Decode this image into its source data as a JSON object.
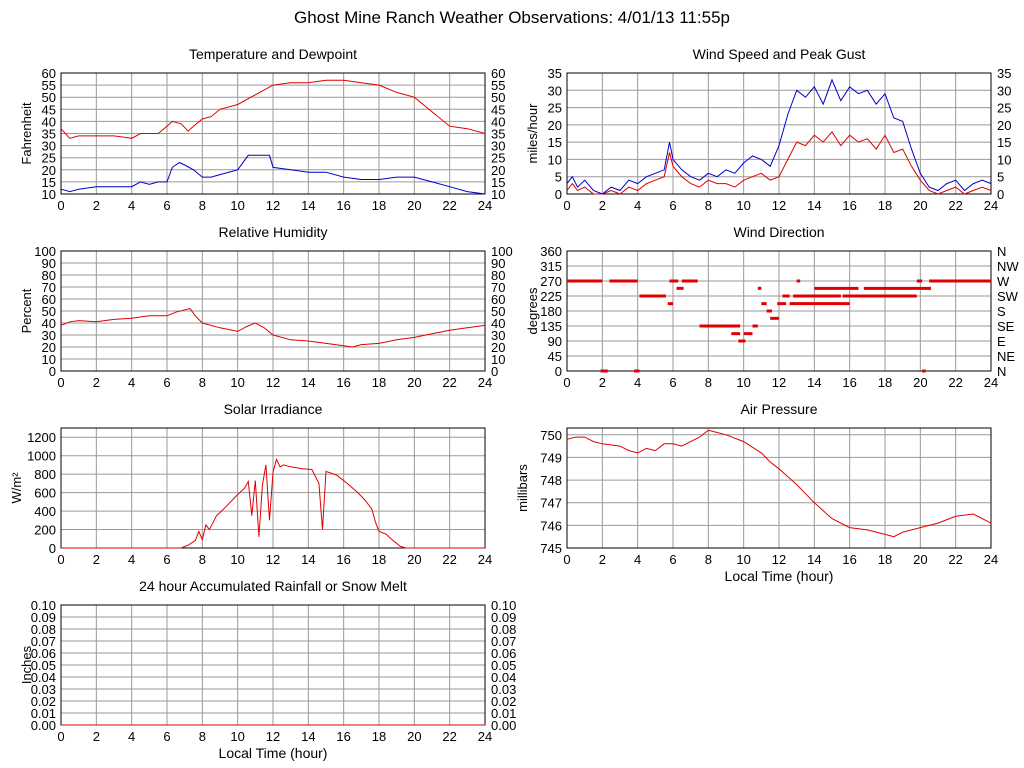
{
  "page": {
    "title": "Ghost Mine Ranch Weather Observations: 4/01/13 11:55p"
  },
  "colors": {
    "grid": "#9a9a9a",
    "frame": "#000000",
    "red": "#e00000",
    "blue": "#0000cc"
  },
  "chart_data": [
    {
      "id": "temperature",
      "type": "line",
      "title": "Temperature and Dewpoint",
      "xlabel": "",
      "ylabel": "Fahrenheit",
      "xlim": [
        0,
        24
      ],
      "ylim": [
        10,
        60
      ],
      "x_ticks": [
        0,
        2,
        4,
        6,
        8,
        10,
        12,
        14,
        16,
        18,
        20,
        22,
        24
      ],
      "y_ticks": [
        10,
        15,
        20,
        25,
        30,
        35,
        40,
        45,
        50,
        55,
        60
      ],
      "y_tick_labels": [
        "10",
        "15",
        "20",
        "25",
        "30",
        "35",
        "40",
        "45",
        "50",
        "55",
        "60"
      ],
      "right_tick_labels": [
        "10",
        "15",
        "20",
        "25",
        "30",
        "35",
        "40",
        "45",
        "50",
        "55",
        "60"
      ],
      "series": [
        {
          "color": "red",
          "x": [
            0,
            0.5,
            1,
            2,
            3,
            4,
            4.5,
            5,
            5.5,
            6,
            6.3,
            6.8,
            7.2,
            7.5,
            8,
            8.5,
            9,
            10,
            11,
            12,
            13,
            14,
            15,
            16,
            17,
            18,
            19,
            20,
            21,
            22,
            23,
            24
          ],
          "y": [
            37,
            33,
            34,
            34,
            34,
            33,
            35,
            35,
            35,
            38,
            40,
            39,
            36,
            38,
            41,
            42,
            45,
            47,
            51,
            55,
            56,
            56,
            57,
            57,
            56,
            55,
            52,
            50,
            44,
            38,
            37,
            35
          ]
        },
        {
          "color": "blue",
          "x": [
            0,
            0.5,
            1,
            2,
            3,
            4,
            4.5,
            5,
            5.5,
            6,
            6.3,
            6.7,
            7,
            7.5,
            8,
            8.5,
            9,
            10,
            10.6,
            11,
            11.8,
            12,
            13,
            14,
            15,
            16,
            17,
            18,
            19,
            20,
            21,
            22,
            23,
            24
          ],
          "y": [
            12,
            11,
            12,
            13,
            13,
            13,
            15,
            14,
            15,
            15,
            21,
            23,
            22,
            20,
            17,
            17,
            18,
            20,
            26,
            26,
            26,
            21,
            20,
            19,
            19,
            17,
            16,
            16,
            17,
            17,
            15,
            13,
            11,
            10
          ]
        }
      ]
    },
    {
      "id": "wind",
      "type": "line",
      "title": "Wind Speed and Peak Gust",
      "xlabel": "",
      "ylabel": "miles/hour",
      "xlim": [
        0,
        24
      ],
      "ylim": [
        0,
        35
      ],
      "x_ticks": [
        0,
        2,
        4,
        6,
        8,
        10,
        12,
        14,
        16,
        18,
        20,
        22,
        24
      ],
      "y_ticks": [
        0,
        5,
        10,
        15,
        20,
        25,
        30,
        35
      ],
      "y_tick_labels": [
        "0",
        "5",
        "10",
        "15",
        "20",
        "25",
        "30",
        "35"
      ],
      "right_tick_labels": [
        "0",
        "5",
        "10",
        "15",
        "20",
        "25",
        "30",
        "35"
      ],
      "series": [
        {
          "color": "red",
          "x": [
            0,
            0.3,
            0.6,
            1,
            1.5,
            2,
            2.5,
            3,
            3.5,
            4,
            4.5,
            5,
            5.5,
            5.8,
            6,
            6.5,
            7,
            7.5,
            8,
            8.5,
            9,
            9.5,
            10,
            10.5,
            11,
            11.5,
            12,
            12.5,
            13,
            13.5,
            14,
            14.5,
            15,
            15.5,
            16,
            16.5,
            17,
            17.5,
            18,
            18.5,
            19,
            19.5,
            20,
            20.5,
            21,
            21.5,
            22,
            22.5,
            23,
            23.5,
            24
          ],
          "y": [
            1,
            3,
            1,
            2,
            0,
            0,
            1,
            0,
            2,
            1,
            3,
            4,
            5,
            12,
            8,
            5,
            3,
            2,
            4,
            3,
            3,
            2,
            4,
            5,
            6,
            4,
            5,
            10,
            15,
            14,
            17,
            15,
            18,
            14,
            17,
            15,
            16,
            13,
            17,
            12,
            13,
            8,
            4,
            1,
            0,
            1,
            2,
            0,
            1,
            2,
            1
          ]
        },
        {
          "color": "blue",
          "x": [
            0,
            0.3,
            0.6,
            1,
            1.5,
            2,
            2.5,
            3,
            3.5,
            4,
            4.5,
            5,
            5.5,
            5.8,
            6,
            6.5,
            7,
            7.5,
            8,
            8.5,
            9,
            9.5,
            10,
            10.5,
            11,
            11.5,
            12,
            12.5,
            13,
            13.5,
            14,
            14.5,
            15,
            15.5,
            16,
            16.5,
            17,
            17.5,
            18,
            18.5,
            19,
            19.5,
            20,
            20.5,
            21,
            21.5,
            22,
            22.5,
            23,
            23.5,
            24
          ],
          "y": [
            3,
            5,
            2,
            4,
            1,
            0,
            2,
            1,
            4,
            3,
            5,
            6,
            7,
            15,
            10,
            7,
            5,
            4,
            6,
            5,
            7,
            6,
            9,
            11,
            10,
            8,
            14,
            23,
            30,
            28,
            31,
            26,
            33,
            27,
            31,
            29,
            30,
            26,
            29,
            22,
            21,
            13,
            6,
            2,
            1,
            3,
            4,
            1,
            3,
            4,
            3
          ]
        }
      ]
    },
    {
      "id": "humidity",
      "type": "line",
      "title": "Relative Humidity",
      "xlabel": "",
      "ylabel": "Percent",
      "xlim": [
        0,
        24
      ],
      "ylim": [
        0,
        100
      ],
      "x_ticks": [
        0,
        2,
        4,
        6,
        8,
        10,
        12,
        14,
        16,
        18,
        20,
        22,
        24
      ],
      "y_ticks": [
        0,
        10,
        20,
        30,
        40,
        50,
        60,
        70,
        80,
        90,
        100
      ],
      "y_tick_labels": [
        "0",
        "10",
        "20",
        "30",
        "40",
        "50",
        "60",
        "70",
        "80",
        "90",
        "100"
      ],
      "right_tick_labels": [
        "0",
        "10",
        "20",
        "30",
        "40",
        "50",
        "60",
        "70",
        "80",
        "90",
        "100"
      ],
      "series": [
        {
          "color": "red",
          "x": [
            0,
            0.5,
            1,
            2,
            3,
            4,
            5,
            6,
            6.5,
            7,
            7.3,
            7.6,
            8,
            9,
            10,
            10.5,
            11,
            11.5,
            12,
            13,
            14,
            15,
            16,
            16.5,
            17,
            18,
            19,
            20,
            21,
            22,
            23,
            24
          ],
          "y": [
            38,
            41,
            42,
            41,
            43,
            44,
            46,
            46,
            49,
            51,
            52,
            46,
            40,
            36,
            33,
            37,
            40,
            36,
            30,
            26,
            25,
            23,
            21,
            20,
            22,
            23,
            26,
            28,
            31,
            34,
            36,
            38
          ]
        }
      ]
    },
    {
      "id": "direction",
      "type": "scatter",
      "title": "Wind Direction",
      "xlabel": "",
      "ylabel": "degrees",
      "xlim": [
        0,
        24
      ],
      "ylim": [
        0,
        360
      ],
      "x_ticks": [
        0,
        2,
        4,
        6,
        8,
        10,
        12,
        14,
        16,
        18,
        20,
        22,
        24
      ],
      "y_ticks": [
        0,
        45,
        90,
        135,
        180,
        225,
        270,
        315,
        360
      ],
      "y_tick_labels": [
        "0",
        "45",
        "90",
        "135",
        "180",
        "225",
        "270",
        "315",
        "360"
      ],
      "right_tick_labels": [
        "N",
        "NE",
        "E",
        "SE",
        "S",
        "SW",
        "W",
        "NW",
        "N"
      ],
      "series": [
        {
          "color": "red",
          "segments": [
            [
              0.0,
              2.0,
              270
            ],
            [
              1.9,
              2.3,
              0
            ],
            [
              2.4,
              4.0,
              270
            ],
            [
              3.8,
              4.1,
              0
            ],
            [
              4.1,
              5.6,
              225
            ],
            [
              5.7,
              6.0,
              202
            ],
            [
              5.8,
              6.3,
              270
            ],
            [
              6.2,
              6.6,
              248
            ],
            [
              6.5,
              7.4,
              270
            ],
            [
              7.5,
              9.8,
              135
            ],
            [
              9.3,
              9.8,
              112
            ],
            [
              9.7,
              10.1,
              90
            ],
            [
              10.0,
              10.5,
              112
            ],
            [
              10.5,
              10.8,
              135
            ],
            [
              10.8,
              11.0,
              248
            ],
            [
              11.0,
              11.3,
              202
            ],
            [
              11.3,
              11.6,
              180
            ],
            [
              11.5,
              12.0,
              158
            ],
            [
              11.9,
              12.4,
              202
            ],
            [
              12.2,
              12.6,
              225
            ],
            [
              12.6,
              16.0,
              202
            ],
            [
              12.8,
              15.5,
              225
            ],
            [
              13.0,
              13.2,
              270
            ],
            [
              14.0,
              16.5,
              248
            ],
            [
              15.6,
              19.8,
              225
            ],
            [
              16.8,
              20.6,
              248
            ],
            [
              19.8,
              20.1,
              270
            ],
            [
              20.1,
              20.3,
              0
            ],
            [
              20.5,
              24.0,
              270
            ]
          ]
        }
      ]
    },
    {
      "id": "solar",
      "type": "line",
      "title": "Solar Irradiance",
      "xlabel": "",
      "ylabel": "W/m²",
      "xlim": [
        0,
        24
      ],
      "ylim": [
        0,
        1300
      ],
      "x_ticks": [
        0,
        2,
        4,
        6,
        8,
        10,
        12,
        14,
        16,
        18,
        20,
        22,
        24
      ],
      "y_ticks": [
        0,
        200,
        400,
        600,
        800,
        1000,
        1200
      ],
      "y_tick_labels": [
        "0",
        "200",
        "400",
        "600",
        "800",
        "1000",
        "1200"
      ],
      "series": [
        {
          "color": "red",
          "x": [
            0,
            6.8,
            7.2,
            7.6,
            7.8,
            8.0,
            8.2,
            8.4,
            8.8,
            9.2,
            9.6,
            10.0,
            10.4,
            10.6,
            10.8,
            11.0,
            11.2,
            11.4,
            11.6,
            11.8,
            12.0,
            12.2,
            12.4,
            12.6,
            13.0,
            13.6,
            14.2,
            14.6,
            14.8,
            15.0,
            15.6,
            16.2,
            16.8,
            17.2,
            17.6,
            17.8,
            18.0,
            18.4,
            18.8,
            19.2,
            19.5,
            24
          ],
          "y": [
            0,
            0,
            30,
            80,
            180,
            90,
            250,
            200,
            350,
            420,
            500,
            580,
            650,
            720,
            350,
            730,
            120,
            680,
            900,
            300,
            820,
            960,
            880,
            900,
            880,
            860,
            850,
            700,
            200,
            830,
            790,
            700,
            600,
            520,
            420,
            280,
            180,
            150,
            80,
            20,
            0,
            0
          ]
        }
      ]
    },
    {
      "id": "pressure",
      "type": "line",
      "title": "Air Pressure",
      "xlabel": "Local Time (hour)",
      "ylabel": "millibars",
      "xlim": [
        0,
        24
      ],
      "ylim": [
        745,
        750.3
      ],
      "x_ticks": [
        0,
        2,
        4,
        6,
        8,
        10,
        12,
        14,
        16,
        18,
        20,
        22,
        24
      ],
      "y_ticks": [
        745,
        746,
        747,
        748,
        749,
        750
      ],
      "y_tick_labels": [
        "745",
        "746",
        "747",
        "748",
        "749",
        "750"
      ],
      "series": [
        {
          "color": "red",
          "x": [
            0,
            0.5,
            1,
            1.5,
            2,
            3,
            3.5,
            4,
            4.5,
            5,
            5.5,
            6,
            6.5,
            7,
            7.5,
            8,
            8.5,
            9,
            10,
            11,
            11.5,
            12,
            13,
            14,
            15,
            16,
            17,
            18,
            18.5,
            19,
            20,
            21,
            22,
            23,
            24
          ],
          "y": [
            749.8,
            749.9,
            749.9,
            749.7,
            749.6,
            749.5,
            749.3,
            749.2,
            749.4,
            749.3,
            749.6,
            749.6,
            749.5,
            749.7,
            749.9,
            750.2,
            750.1,
            750.0,
            749.7,
            749.2,
            748.8,
            748.5,
            747.8,
            747.0,
            746.3,
            745.9,
            745.8,
            745.6,
            745.5,
            745.7,
            745.9,
            746.1,
            746.4,
            746.5,
            746.1
          ]
        }
      ]
    },
    {
      "id": "rain",
      "type": "line",
      "title": "24 hour Accumulated Rainfall or Snow Melt",
      "xlabel": "Local Time (hour)",
      "ylabel": "Inches",
      "xlim": [
        0,
        24
      ],
      "ylim": [
        0,
        0.1
      ],
      "x_ticks": [
        0,
        2,
        4,
        6,
        8,
        10,
        12,
        14,
        16,
        18,
        20,
        22,
        24
      ],
      "y_ticks": [
        0,
        0.01,
        0.02,
        0.03,
        0.04,
        0.05,
        0.06,
        0.07,
        0.08,
        0.09,
        0.1
      ],
      "y_tick_labels": [
        "0.00",
        "0.01",
        "0.02",
        "0.03",
        "0.04",
        "0.05",
        "0.06",
        "0.07",
        "0.08",
        "0.09",
        "0.10"
      ],
      "right_tick_labels": [
        "0.00",
        "0.01",
        "0.02",
        "0.03",
        "0.04",
        "0.05",
        "0.06",
        "0.07",
        "0.08",
        "0.09",
        "0.10"
      ],
      "series": [
        {
          "color": "red",
          "x": [
            0,
            24
          ],
          "y": [
            0,
            0
          ]
        }
      ]
    }
  ]
}
